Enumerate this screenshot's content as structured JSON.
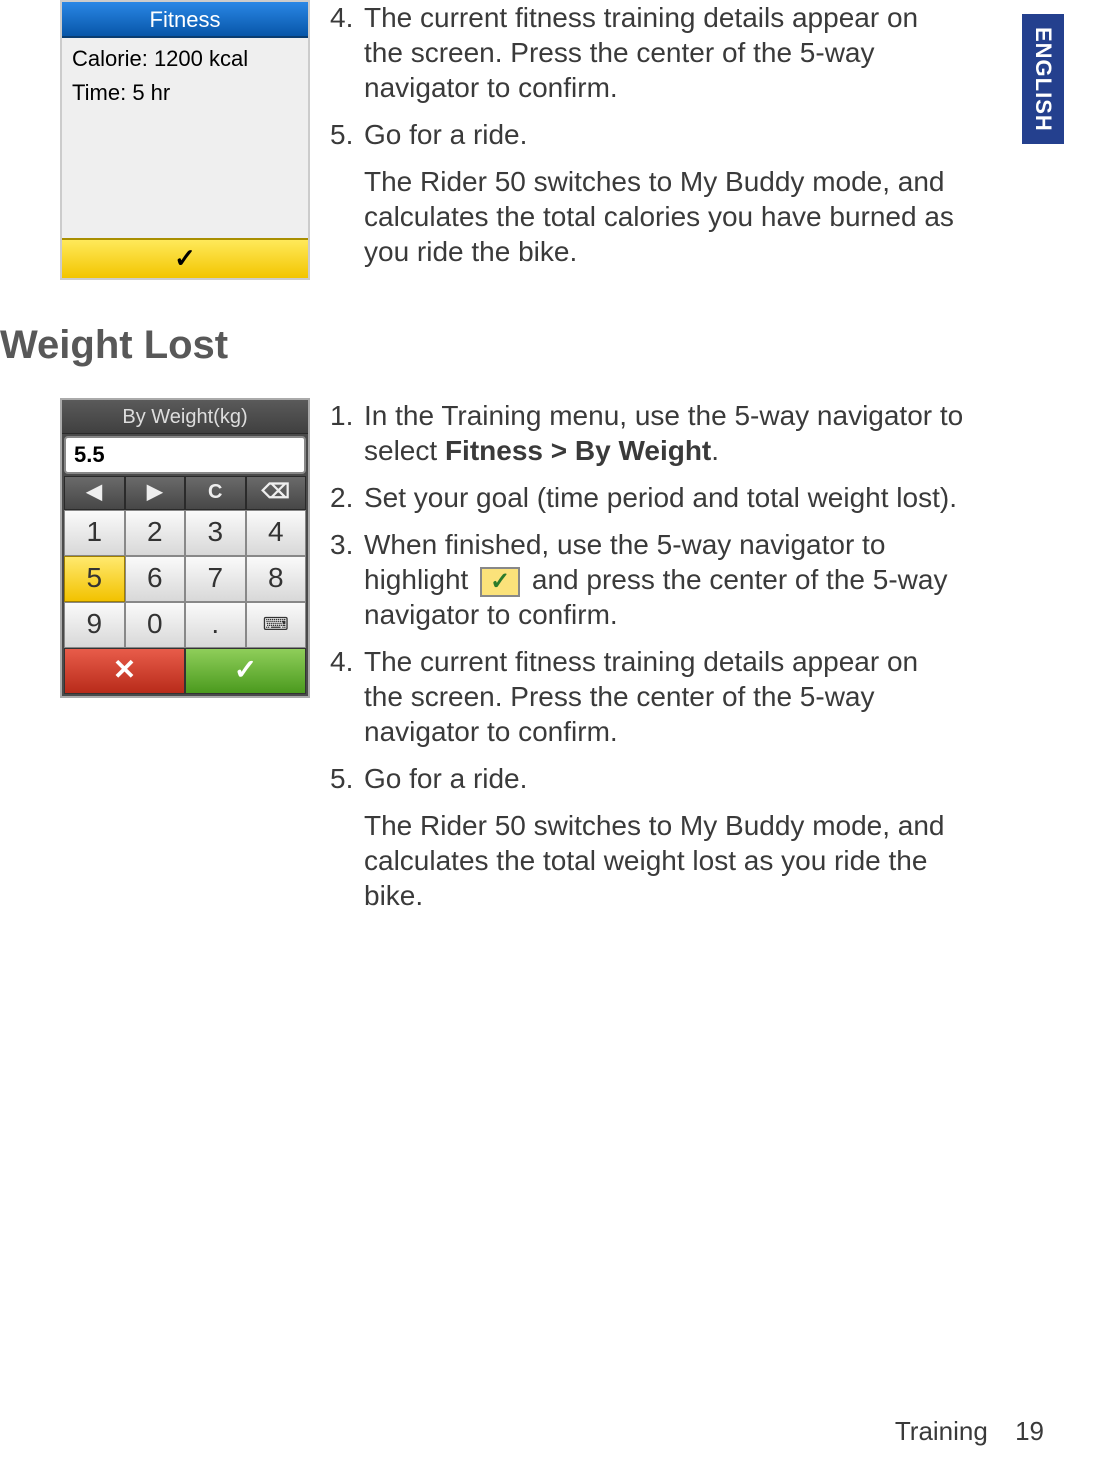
{
  "language_tab": "ENGLISH",
  "section1": {
    "steps": [
      {
        "n": "4.",
        "text": "The current fitness training details appear on the screen. Press the center of the 5-way navigator to confirm."
      },
      {
        "n": "5.",
        "text": "Go for a ride."
      }
    ],
    "sub_after_5": "The Rider 50 switches to My Buddy mode, and calculates the total calories you have burned as you ride the bike."
  },
  "fitness_screen": {
    "title": "Fitness",
    "line1_label": "Calorie:",
    "line1_value": "1200 kcal",
    "line2_label": "Time:",
    "line2_value": "5 hr",
    "confirm_glyph": "✓",
    "colors": {
      "titlebar_top": "#2a87e6",
      "titlebar_bottom": "#0856a8",
      "body_bg": "#efefef",
      "confirm_bg_top": "#ffe95a",
      "confirm_bg_bottom": "#f2c500"
    }
  },
  "heading_weight_lost": "Weight Lost",
  "weight_screen": {
    "title": "By Weight(kg)",
    "value": "5.5",
    "ctrl_keys": [
      "◀",
      "▶",
      "C",
      "⌫"
    ],
    "num_rows": [
      [
        "1",
        "2",
        "3",
        "4"
      ],
      [
        "5",
        "6",
        "7",
        "8"
      ],
      [
        "9",
        "0",
        ".",
        "⌨"
      ]
    ],
    "selected_key": "5",
    "cancel_glyph": "✕",
    "ok_glyph": "✓",
    "colors": {
      "frame": "#4a4a4a",
      "title_bg": "#4a4a4a",
      "key_bg": "#e8e8e8",
      "selected_bg": "#f5d233",
      "cancel_bg": "#d03d2a",
      "ok_bg": "#6bb52f"
    }
  },
  "section2": {
    "step1_pre": "In the Training menu, use the 5-way navigator to select ",
    "step1_bold": "Fitness > By Weight",
    "step1_post": ".",
    "step2": "Set your goal (time period and total weight lost).",
    "step3_pre": "When finished, use the 5-way navigator to highlight ",
    "step3_post": " and press the center of the 5-way navigator to confirm.",
    "step4": "The current fitness training details appear on the screen. Press the center of the 5-way navigator to confirm.",
    "step5": "Go for a ride.",
    "sub_after_5": "The Rider 50 switches to My Buddy mode, and calculates the total weight lost as you ride the bike."
  },
  "footer": {
    "section": "Training",
    "page": "19"
  }
}
